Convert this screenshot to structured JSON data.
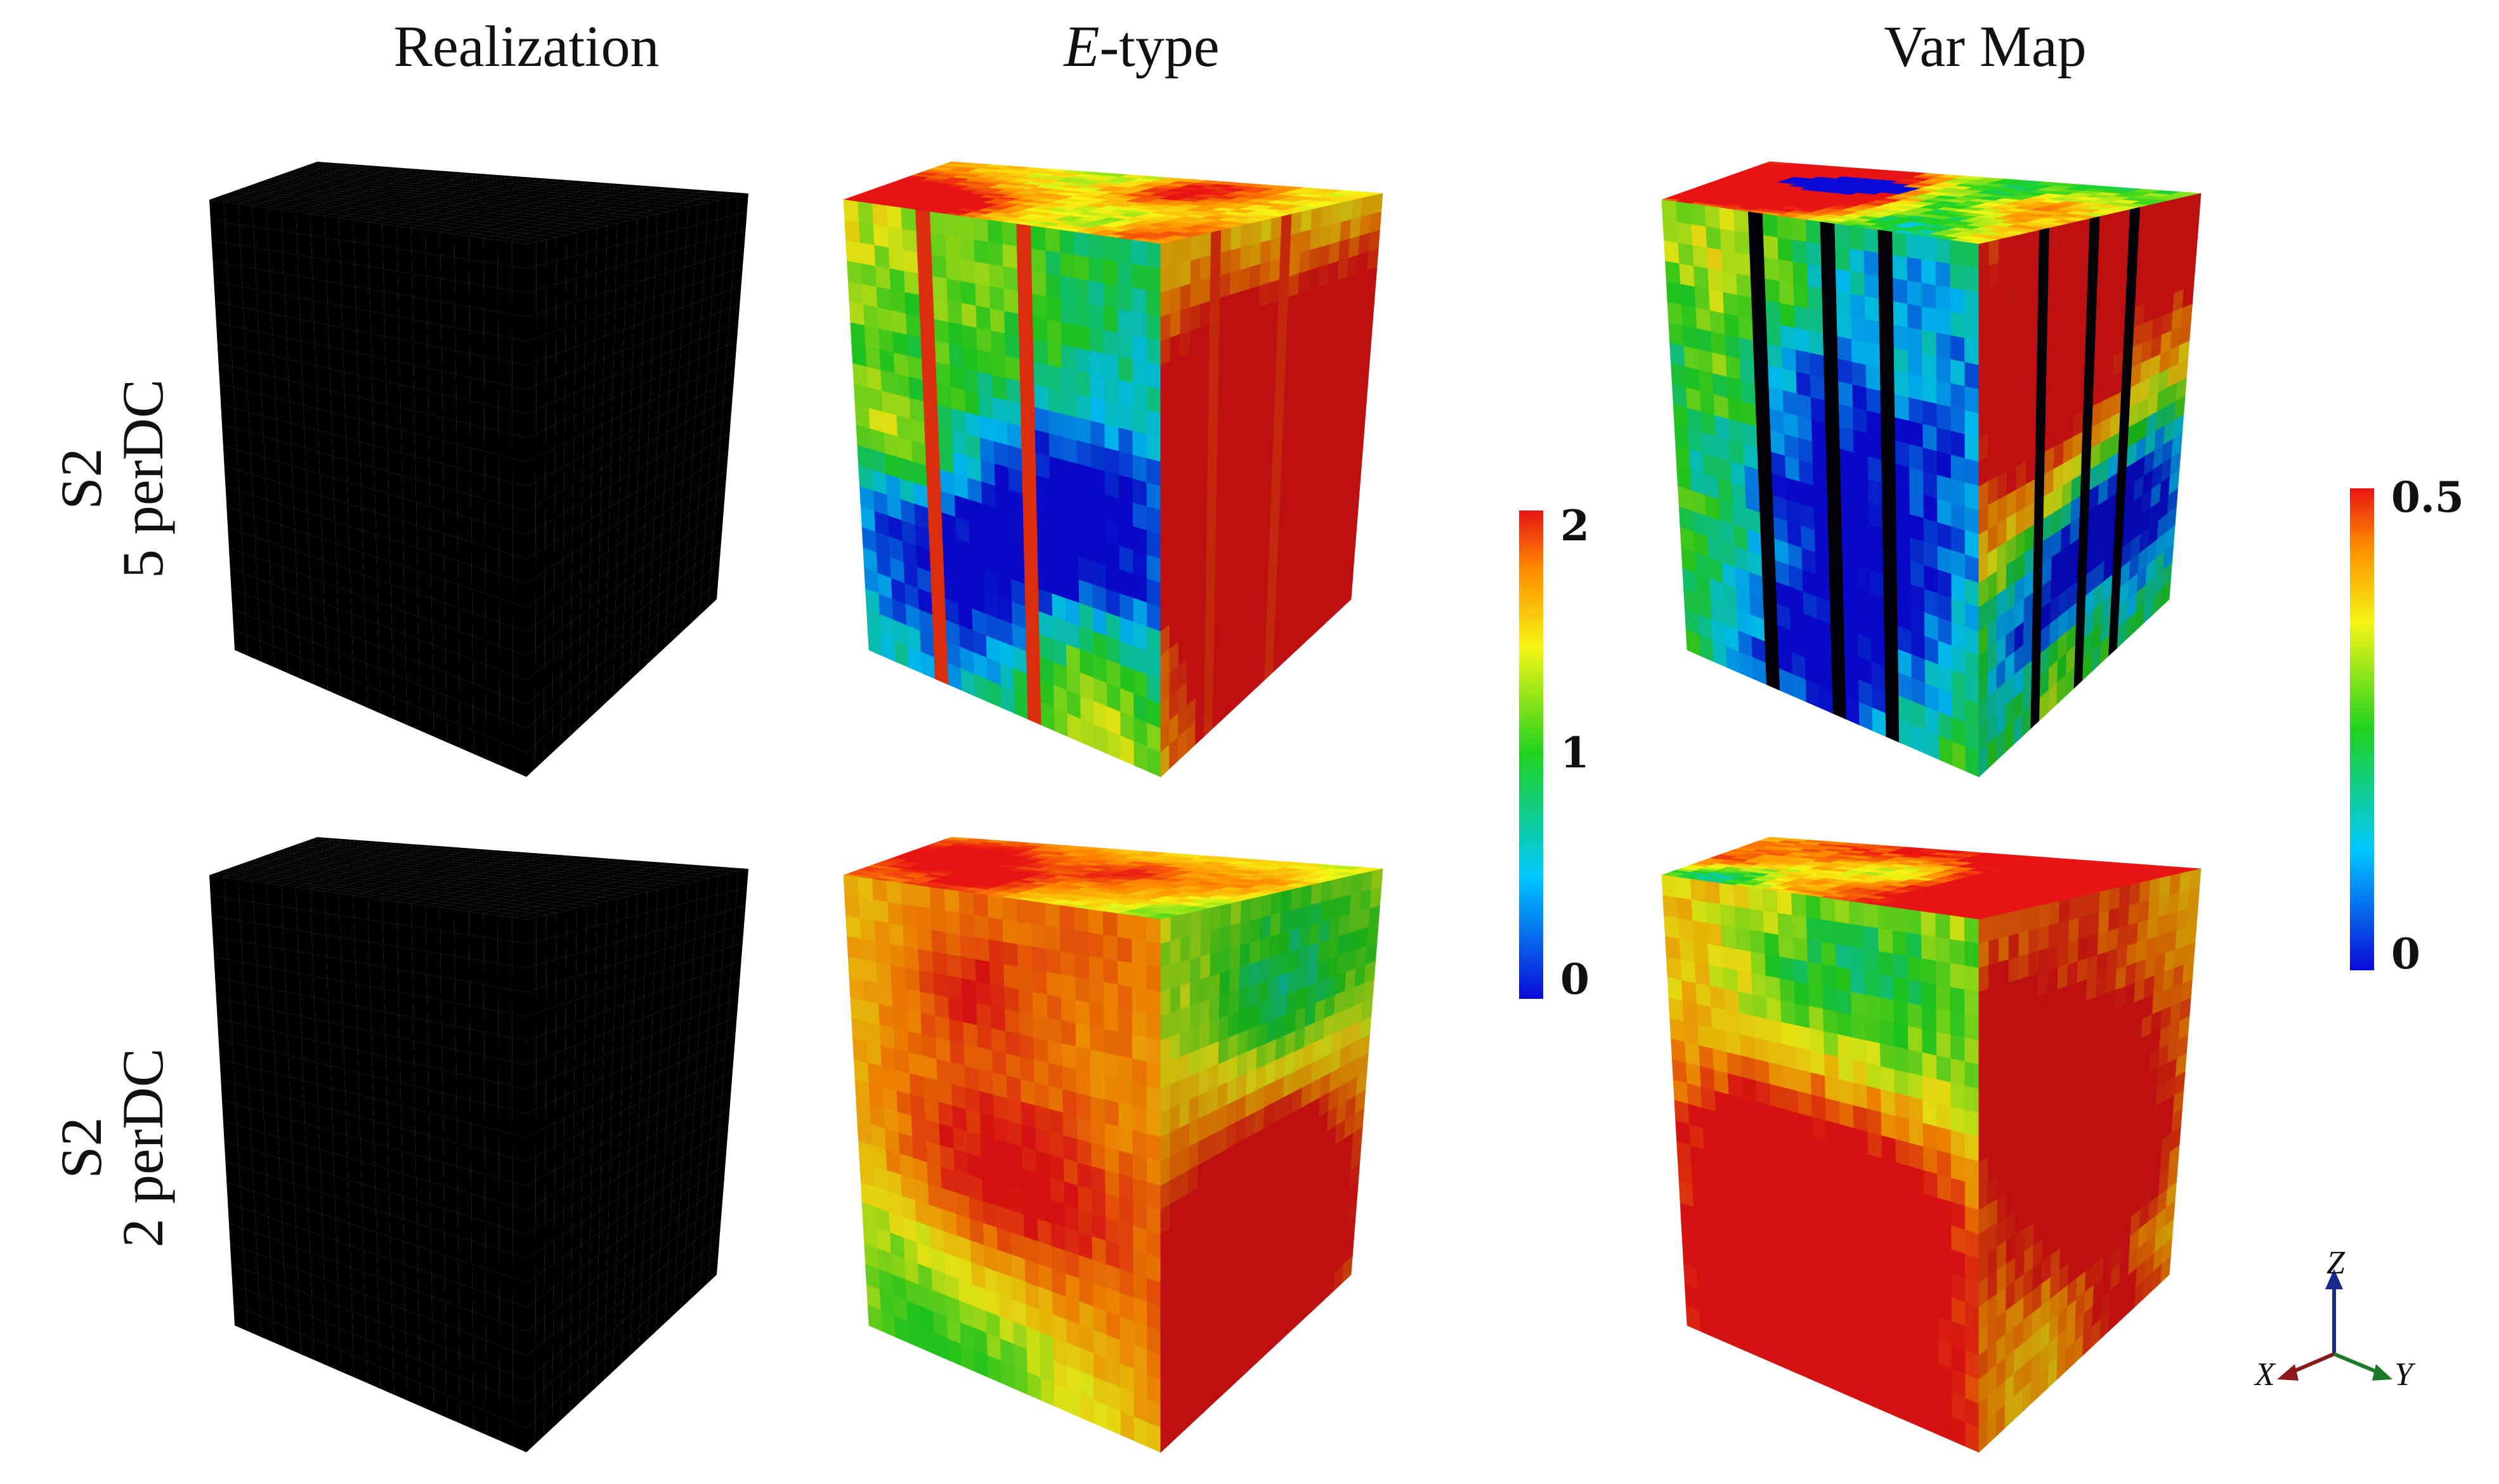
{
  "columns": {
    "realization": "Realization",
    "etype_prefix": "E",
    "etype_suffix": "-type",
    "varmap": "Var Map"
  },
  "rows": [
    {
      "line1": "S2",
      "line2": "5 perDC"
    },
    {
      "line1": "S2",
      "line2": "2 perDC"
    }
  ],
  "colorbars": {
    "etype": {
      "max": "2",
      "mid": "1",
      "min": "0"
    },
    "varmap": {
      "max": "0.5",
      "min": "0"
    }
  },
  "axes": {
    "z": "Z",
    "x": "X",
    "y": "Y"
  },
  "colors": {
    "realization_green": "#1fd21f",
    "realization_red": "#e01414",
    "cmap": [
      "#0a0ad8",
      "#00c8ff",
      "#1fd21f",
      "#f5f514",
      "#ff8c00",
      "#e81414"
    ]
  }
}
